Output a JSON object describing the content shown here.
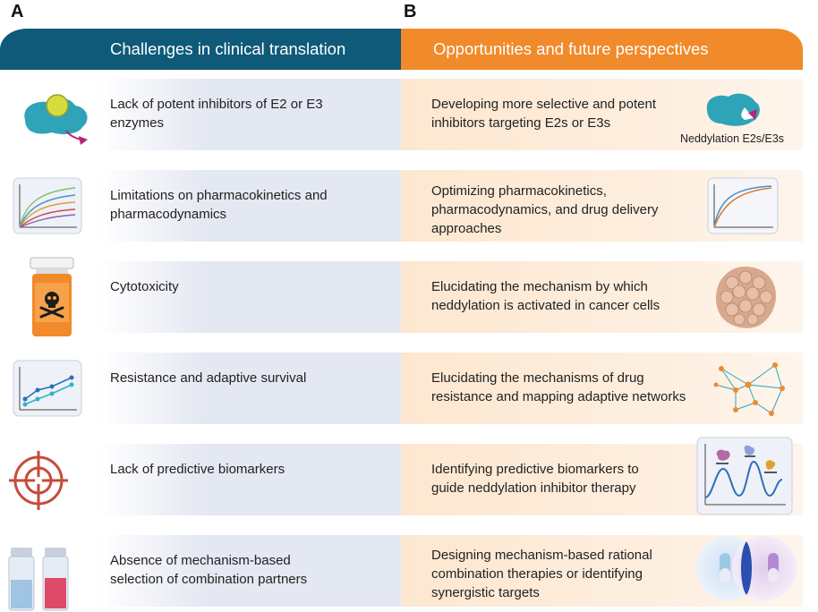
{
  "panels": {
    "a": "A",
    "b": "B"
  },
  "headers": {
    "left": "Challenges in clinical translation",
    "right": "Opportunities and future perspectives"
  },
  "rows": [
    {
      "challenge": [
        "Lack of potent inhibitors of E2 or E3",
        "enzymes"
      ],
      "opportunity": [
        "Developing more selective and potent",
        "inhibitors targeting E2s or E3s"
      ],
      "left_icon": "enzyme-inhibitor-icon",
      "right_icon": "neddylation-enzyme-icon",
      "right_label": "Neddylation E2s/E3s"
    },
    {
      "challenge": [
        "Limitations on pharmacokinetics and",
        "pharmacodynamics"
      ],
      "opportunity": [
        "Optimizing pharmacokinetics,",
        "pharmacodynamics, and drug delivery",
        "approaches"
      ],
      "left_icon": "pk-curves-icon",
      "right_icon": "optimized-curves-icon"
    },
    {
      "challenge": [
        "Cytotoxicity"
      ],
      "opportunity": [
        "Elucidating the mechanism by which",
        "neddylation is activated in cancer cells"
      ],
      "left_icon": "toxic-bottle-icon",
      "right_icon": "cancer-cell-cluster-icon"
    },
    {
      "challenge": [
        "Resistance and adaptive survival"
      ],
      "opportunity": [
        "Elucidating the mechanisms of drug",
        "resistance and mapping adaptive networks"
      ],
      "left_icon": "rising-line-chart-icon",
      "right_icon": "network-icon"
    },
    {
      "challenge": [
        "Lack of predictive biomarkers"
      ],
      "opportunity": [
        "Identifying predictive biomarkers to",
        "guide neddylation inhibitor therapy"
      ],
      "left_icon": "target-crosshair-icon",
      "right_icon": "biomarker-peaks-icon"
    },
    {
      "challenge": [
        "Absence of mechanism-based",
        "selection of combination partners"
      ],
      "opportunity": [
        "Designing mechanism-based rational",
        "combination therapies or identifying",
        "synergistic targets"
      ],
      "left_icon": "vials-icon",
      "right_icon": "combination-capsules-icon"
    }
  ],
  "colors": {
    "header_left": "#0e5a78",
    "header_right": "#f08a2a",
    "row_left_bg": "#e4e8f2",
    "row_right_bg": "#fdeede"
  }
}
